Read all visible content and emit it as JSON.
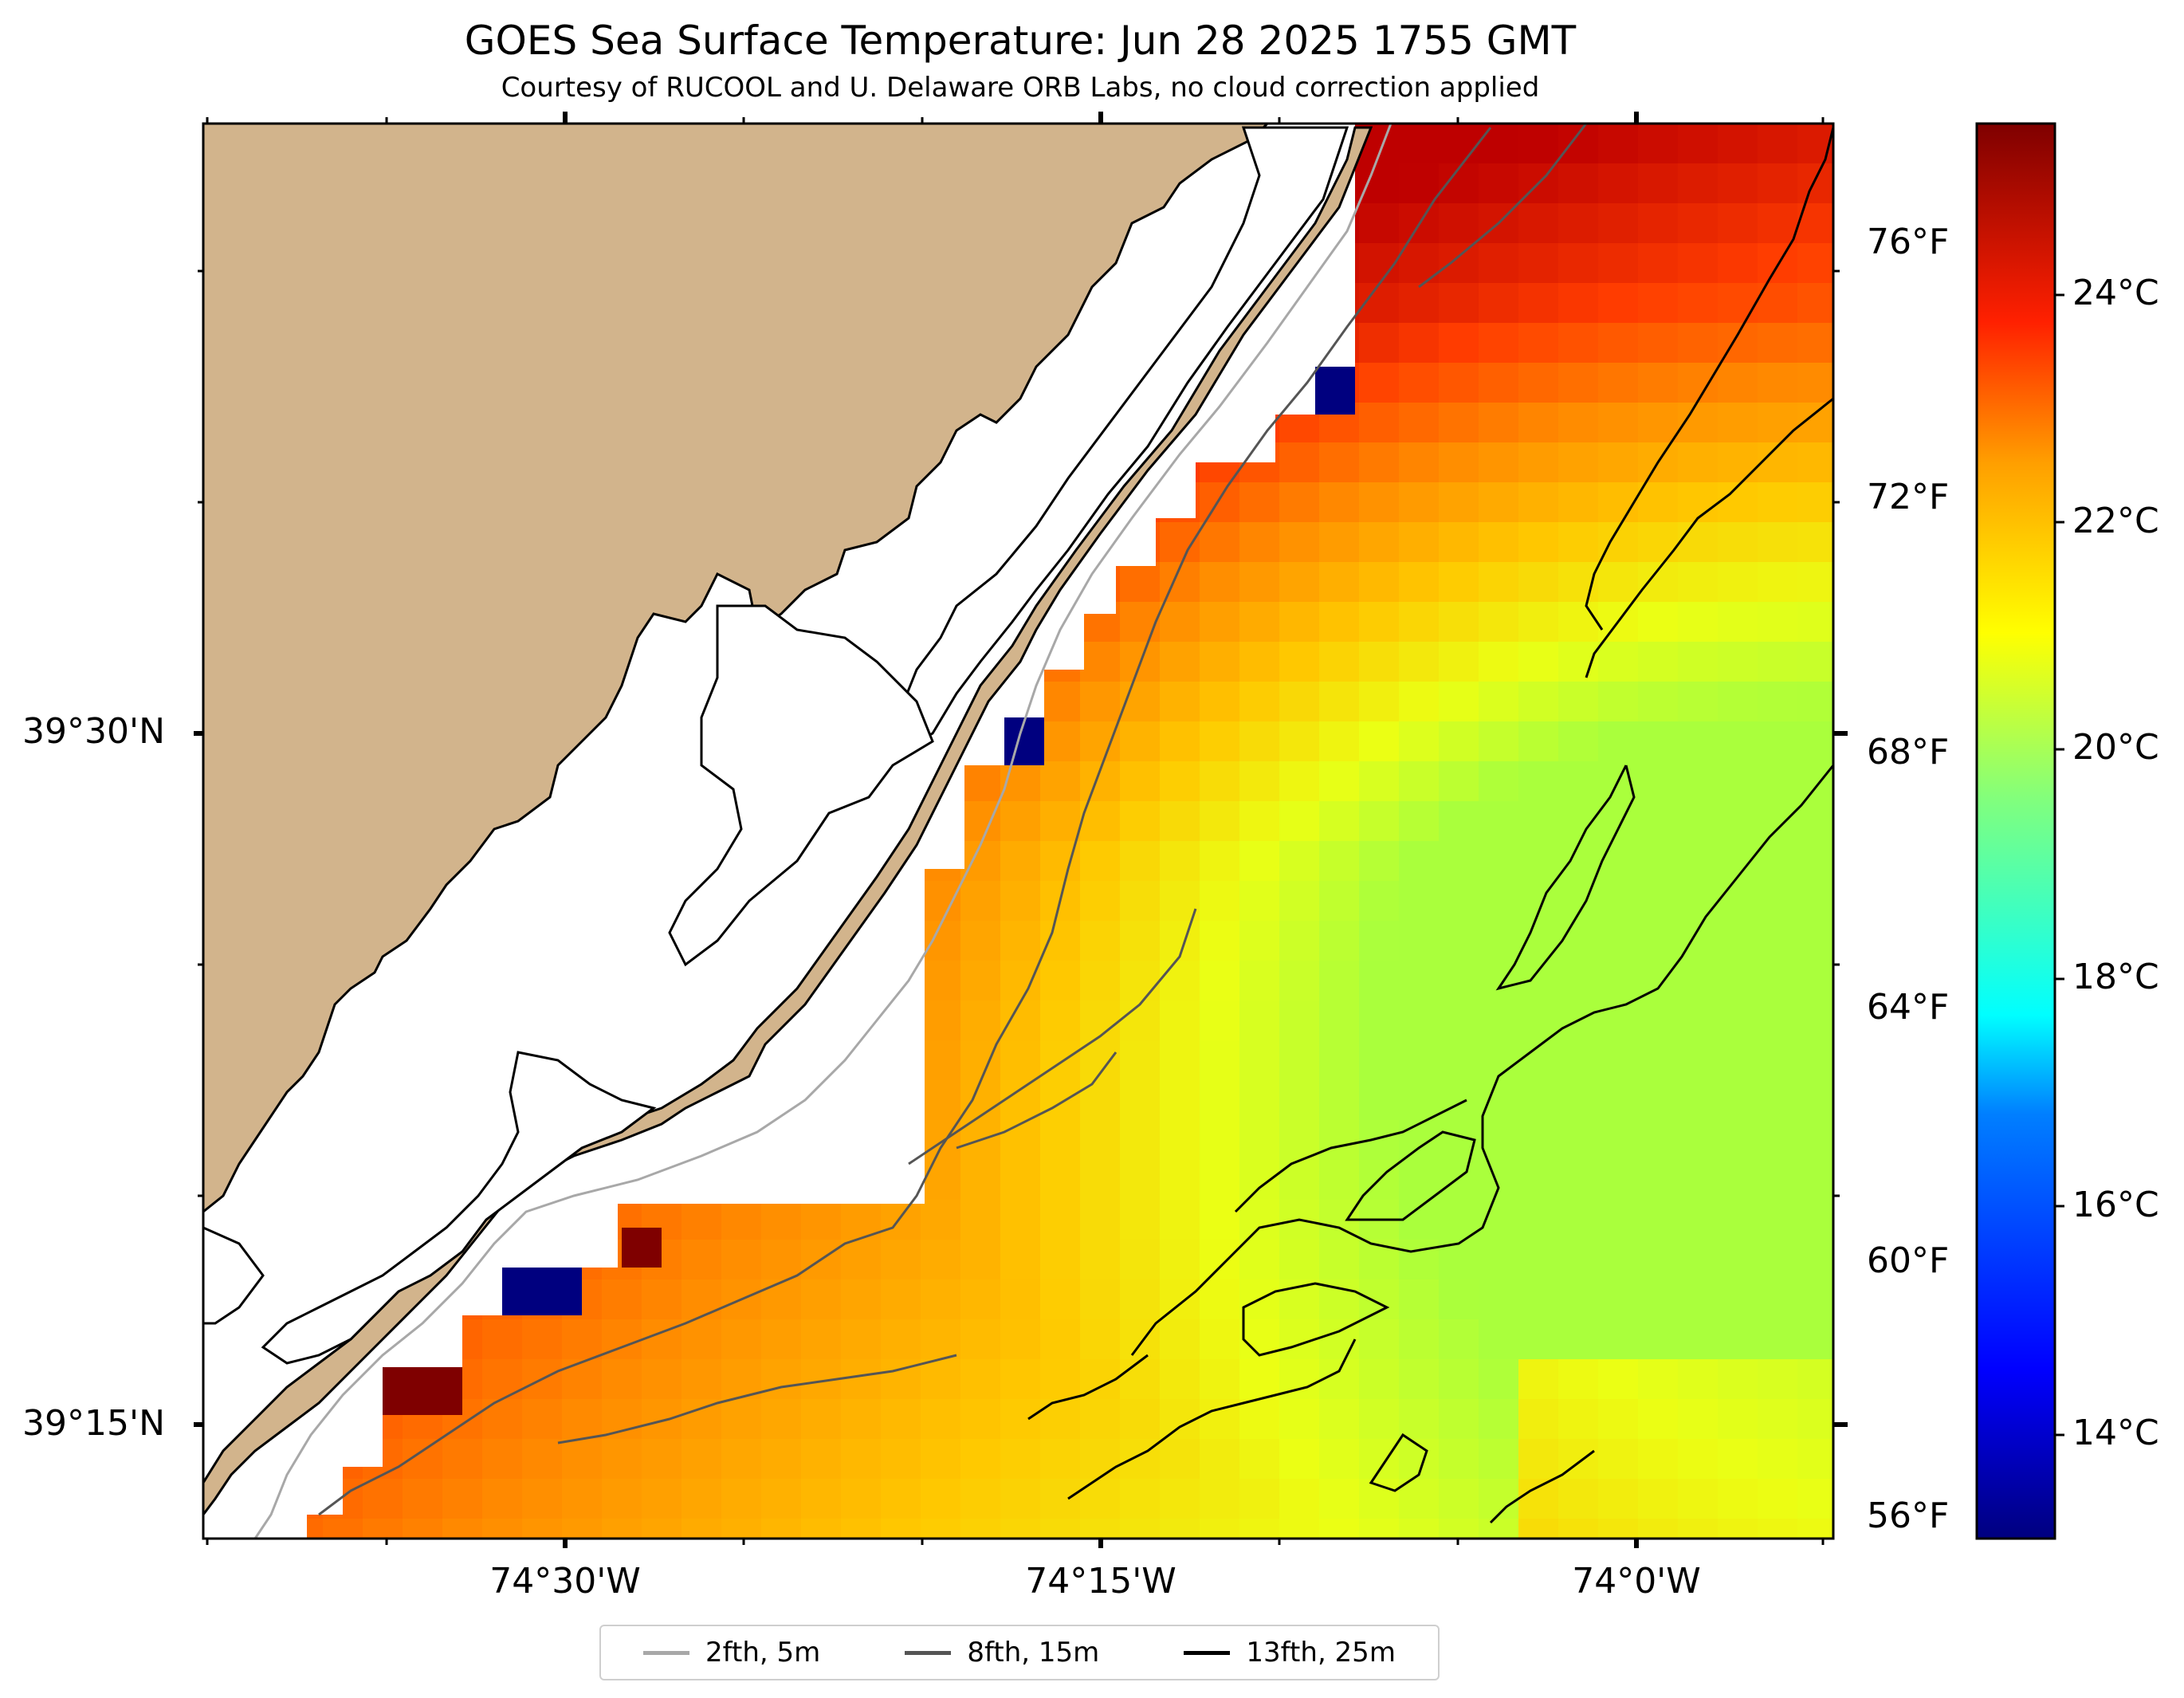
{
  "title": "GOES Sea Surface Temperature: Jun 28 2025 1755 GMT",
  "subtitle": "Courtesy of RUCOOL and U. Delaware ORB Labs, no cloud correction applied",
  "axes": {
    "lat_labels": [
      "39°30'N",
      "39°15'N"
    ],
    "lon_labels": [
      "74°30'W",
      "74°15'W",
      "74°0'W"
    ]
  },
  "temp_scale_f": [
    "76°F",
    "72°F",
    "68°F",
    "64°F",
    "60°F",
    "56°F"
  ],
  "colorbar": {
    "labels": [
      "24°C",
      "22°C",
      "20°C",
      "18°C",
      "16°C",
      "14°C"
    ],
    "colors": [
      "#00007f",
      "#0000ff",
      "#007fff",
      "#00ffff",
      "#7fff7f",
      "#ffff00",
      "#ff7f00",
      "#ff0000",
      "#7f0000"
    ]
  },
  "legend": [
    {
      "label": "2fth, 5m",
      "color": "#a8a8a8"
    },
    {
      "label": "8fth, 15m",
      "color": "#555555"
    },
    {
      "label": "13fth, 25m",
      "color": "#000000"
    }
  ],
  "colors": {
    "land": "#d2b48c",
    "coastline": "#000000",
    "no_data": "#ffffff"
  }
}
